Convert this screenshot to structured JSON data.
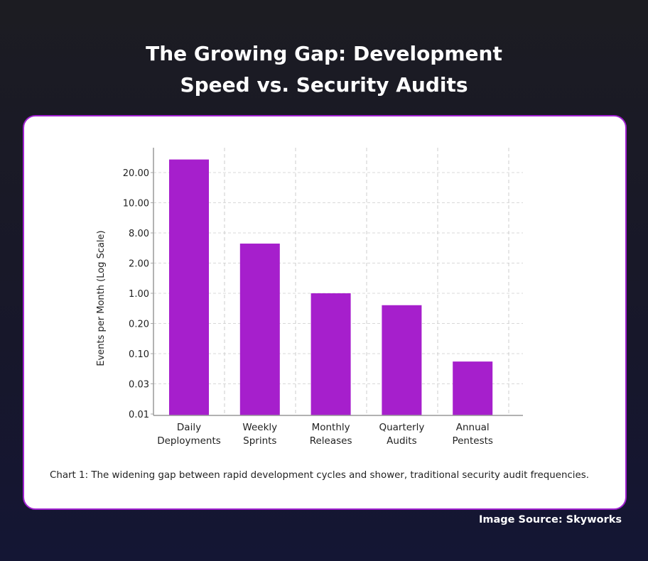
{
  "title_line1": "The Growing Gap: Development",
  "title_line2": "Speed vs. Security Audits",
  "caption": "Chart 1: The widening gap between rapid development cycles and shower, traditional security audit frequencies.",
  "source": "Image Source: Skyworks",
  "chart_data": {
    "type": "bar",
    "title": "The Growing Gap: Development Speed vs. Security Audits",
    "ylabel": "Events per Month (Log Scale)",
    "xlabel": "",
    "yscale": "log",
    "ytick_labels": [
      "0.01",
      "0.03",
      "0.10",
      "0.20",
      "1.00",
      "2.00",
      "8.00",
      "10.00",
      "20.00"
    ],
    "categories": [
      [
        "Daily",
        "Deployments"
      ],
      [
        "Weekly",
        "Sprints"
      ],
      [
        "Monthly",
        "Releases"
      ],
      [
        "Quarterly",
        "Audits"
      ],
      [
        "Annual",
        "Pentests"
      ]
    ],
    "values": [
      27,
      4.9,
      1,
      0.53,
      0.073
    ],
    "grid": true,
    "bar_color": "#a61fcc"
  }
}
